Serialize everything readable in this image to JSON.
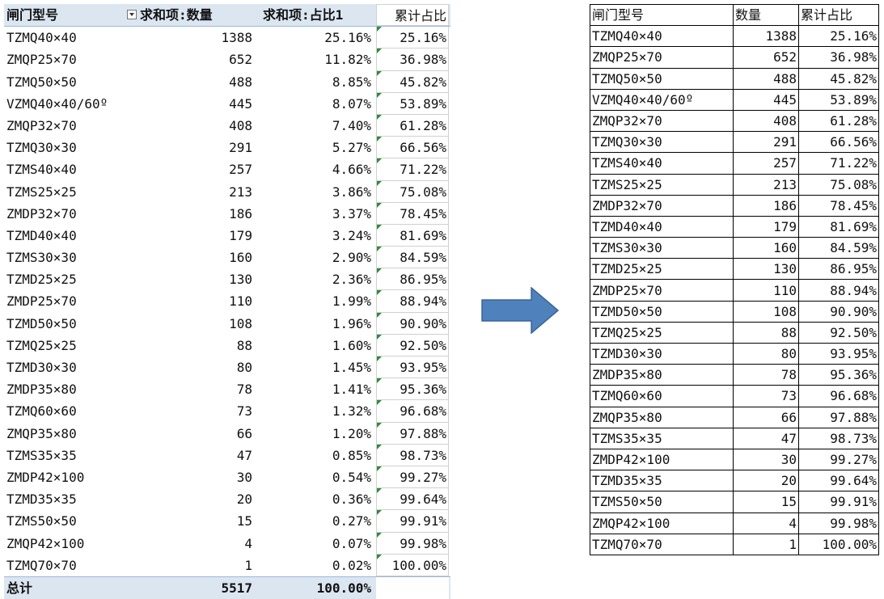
{
  "pivot": {
    "headers": {
      "name": "闸门型号",
      "qty": "求和项:数量",
      "pct": "求和项:占比1",
      "cum": "累计占比"
    },
    "rows": [
      {
        "name": "TZMQ40×40",
        "qty": "1388",
        "pct": "25.16%",
        "cum": "25.16%"
      },
      {
        "name": "ZMQP25×70",
        "qty": "652",
        "pct": "11.82%",
        "cum": "36.98%"
      },
      {
        "name": "TZMQ50×50",
        "qty": "488",
        "pct": "8.85%",
        "cum": "45.82%"
      },
      {
        "name": "VZMQ40×40/60º",
        "qty": "445",
        "pct": "8.07%",
        "cum": "53.89%"
      },
      {
        "name": "ZMQP32×70",
        "qty": "408",
        "pct": "7.40%",
        "cum": "61.28%"
      },
      {
        "name": "TZMQ30×30",
        "qty": "291",
        "pct": "5.27%",
        "cum": "66.56%"
      },
      {
        "name": "TZMS40×40",
        "qty": "257",
        "pct": "4.66%",
        "cum": "71.22%"
      },
      {
        "name": "TZMS25×25",
        "qty": "213",
        "pct": "3.86%",
        "cum": "75.08%"
      },
      {
        "name": "ZMDP32×70",
        "qty": "186",
        "pct": "3.37%",
        "cum": "78.45%"
      },
      {
        "name": "TZMD40×40",
        "qty": "179",
        "pct": "3.24%",
        "cum": "81.69%"
      },
      {
        "name": "TZMS30×30",
        "qty": "160",
        "pct": "2.90%",
        "cum": "84.59%"
      },
      {
        "name": "TZMD25×25",
        "qty": "130",
        "pct": "2.36%",
        "cum": "86.95%"
      },
      {
        "name": "ZMDP25×70",
        "qty": "110",
        "pct": "1.99%",
        "cum": "88.94%"
      },
      {
        "name": "TZMD50×50",
        "qty": "108",
        "pct": "1.96%",
        "cum": "90.90%"
      },
      {
        "name": "TZMQ25×25",
        "qty": "88",
        "pct": "1.60%",
        "cum": "92.50%"
      },
      {
        "name": "TZMD30×30",
        "qty": "80",
        "pct": "1.45%",
        "cum": "93.95%"
      },
      {
        "name": "ZMDP35×80",
        "qty": "78",
        "pct": "1.41%",
        "cum": "95.36%"
      },
      {
        "name": "TZMQ60×60",
        "qty": "73",
        "pct": "1.32%",
        "cum": "96.68%"
      },
      {
        "name": "ZMQP35×80",
        "qty": "66",
        "pct": "1.20%",
        "cum": "97.88%"
      },
      {
        "name": "TZMS35×35",
        "qty": "47",
        "pct": "0.85%",
        "cum": "98.73%"
      },
      {
        "name": "ZMDP42×100",
        "qty": "30",
        "pct": "0.54%",
        "cum": "99.27%"
      },
      {
        "name": "TZMD35×35",
        "qty": "20",
        "pct": "0.36%",
        "cum": "99.64%"
      },
      {
        "name": "TZMS50×50",
        "qty": "15",
        "pct": "0.27%",
        "cum": "99.91%"
      },
      {
        "name": "ZMQP42×100",
        "qty": "4",
        "pct": "0.07%",
        "cum": "99.98%"
      },
      {
        "name": "TZMQ70×70",
        "qty": "1",
        "pct": "0.02%",
        "cum": "100.00%"
      }
    ],
    "total": {
      "label": "总计",
      "qty": "5517",
      "pct": "100.00%"
    }
  },
  "arrow": {
    "color": "#4f81bd",
    "icon": "right-arrow-icon"
  },
  "result": {
    "headers": {
      "name": "闸门型号",
      "qty": "数量",
      "cum": "累计占比"
    },
    "rows": [
      {
        "name": "TZMQ40×40",
        "qty": "1388",
        "cum": "25.16%"
      },
      {
        "name": "ZMQP25×70",
        "qty": "652",
        "cum": "36.98%"
      },
      {
        "name": "TZMQ50×50",
        "qty": "488",
        "cum": "45.82%"
      },
      {
        "name": "VZMQ40×40/60º",
        "qty": "445",
        "cum": "53.89%"
      },
      {
        "name": "ZMQP32×70",
        "qty": "408",
        "cum": "61.28%"
      },
      {
        "name": "TZMQ30×30",
        "qty": "291",
        "cum": "66.56%"
      },
      {
        "name": "TZMS40×40",
        "qty": "257",
        "cum": "71.22%"
      },
      {
        "name": "TZMS25×25",
        "qty": "213",
        "cum": "75.08%"
      },
      {
        "name": "ZMDP32×70",
        "qty": "186",
        "cum": "78.45%"
      },
      {
        "name": "TZMD40×40",
        "qty": "179",
        "cum": "81.69%"
      },
      {
        "name": "TZMS30×30",
        "qty": "160",
        "cum": "84.59%"
      },
      {
        "name": "TZMD25×25",
        "qty": "130",
        "cum": "86.95%"
      },
      {
        "name": "ZMDP25×70",
        "qty": "110",
        "cum": "88.94%"
      },
      {
        "name": "TZMD50×50",
        "qty": "108",
        "cum": "90.90%"
      },
      {
        "name": "TZMQ25×25",
        "qty": "88",
        "cum": "92.50%"
      },
      {
        "name": "TZMD30×30",
        "qty": "80",
        "cum": "93.95%"
      },
      {
        "name": "ZMDP35×80",
        "qty": "78",
        "cum": "95.36%"
      },
      {
        "name": "TZMQ60×60",
        "qty": "73",
        "cum": "96.68%"
      },
      {
        "name": "ZMQP35×80",
        "qty": "66",
        "cum": "97.88%"
      },
      {
        "name": "TZMS35×35",
        "qty": "47",
        "cum": "98.73%"
      },
      {
        "name": "ZMDP42×100",
        "qty": "30",
        "cum": "99.27%"
      },
      {
        "name": "TZMD35×35",
        "qty": "20",
        "cum": "99.64%"
      },
      {
        "name": "TZMS50×50",
        "qty": "15",
        "cum": "99.91%"
      },
      {
        "name": "ZMQP42×100",
        "qty": "4",
        "cum": "99.98%"
      },
      {
        "name": "TZMQ70×70",
        "qty": "1",
        "cum": "100.00%"
      }
    ]
  }
}
